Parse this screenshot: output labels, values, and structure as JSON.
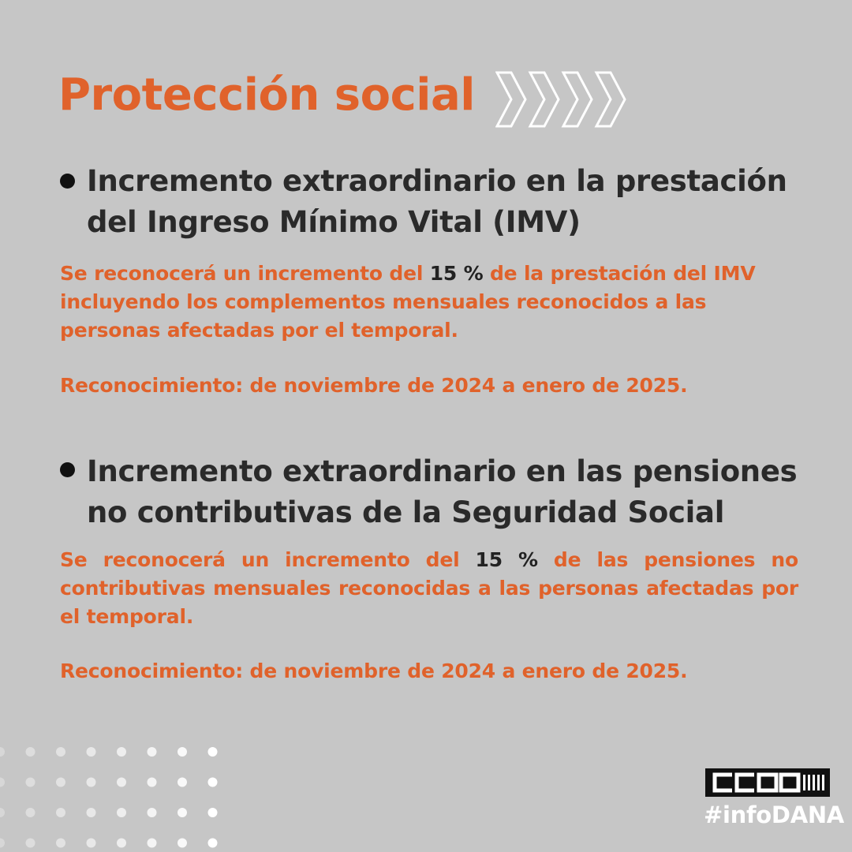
{
  "title": "Protección social",
  "sections": [
    {
      "heading_line1": "Incremento extraordinario en la prestación",
      "heading_line2": "del Ingreso Mínimo Vital (IMV)",
      "body_before": "Se reconocerá un incremento del ",
      "body_highlight": "15 %",
      "body_after": " de la prestación del IMV incluyendo los complementos mensuales reconocidos a las personas afectadas por el temporal.",
      "dates": "Reconocimiento: de noviembre de 2024 a enero de 2025."
    },
    {
      "heading_line1": "Incremento extraordinario en las pensiones",
      "heading_line2": "no contributivas de la Seguridad Social",
      "body_before": "Se reconocerá un incremento del ",
      "body_highlight": "15 %",
      "body_after": " de las pensiones no contributivas mensuales reconocidas a las personas afectadas por el temporal.",
      "dates": "Reconocimiento: de noviembre de 2024 a enero de 2025."
    }
  ],
  "logo": {
    "text": "CCOO"
  },
  "hashtag": "#infoDANA",
  "colors": {
    "background": "#c6c6c6",
    "accent": "#e0622b",
    "heading": "#2a2a2a",
    "logo_bg": "#111111"
  },
  "icons": {
    "chevrons": "double-chevron-right-icon",
    "bullet": "bullet-dot-icon",
    "dots": "dot-grid-decoration"
  }
}
